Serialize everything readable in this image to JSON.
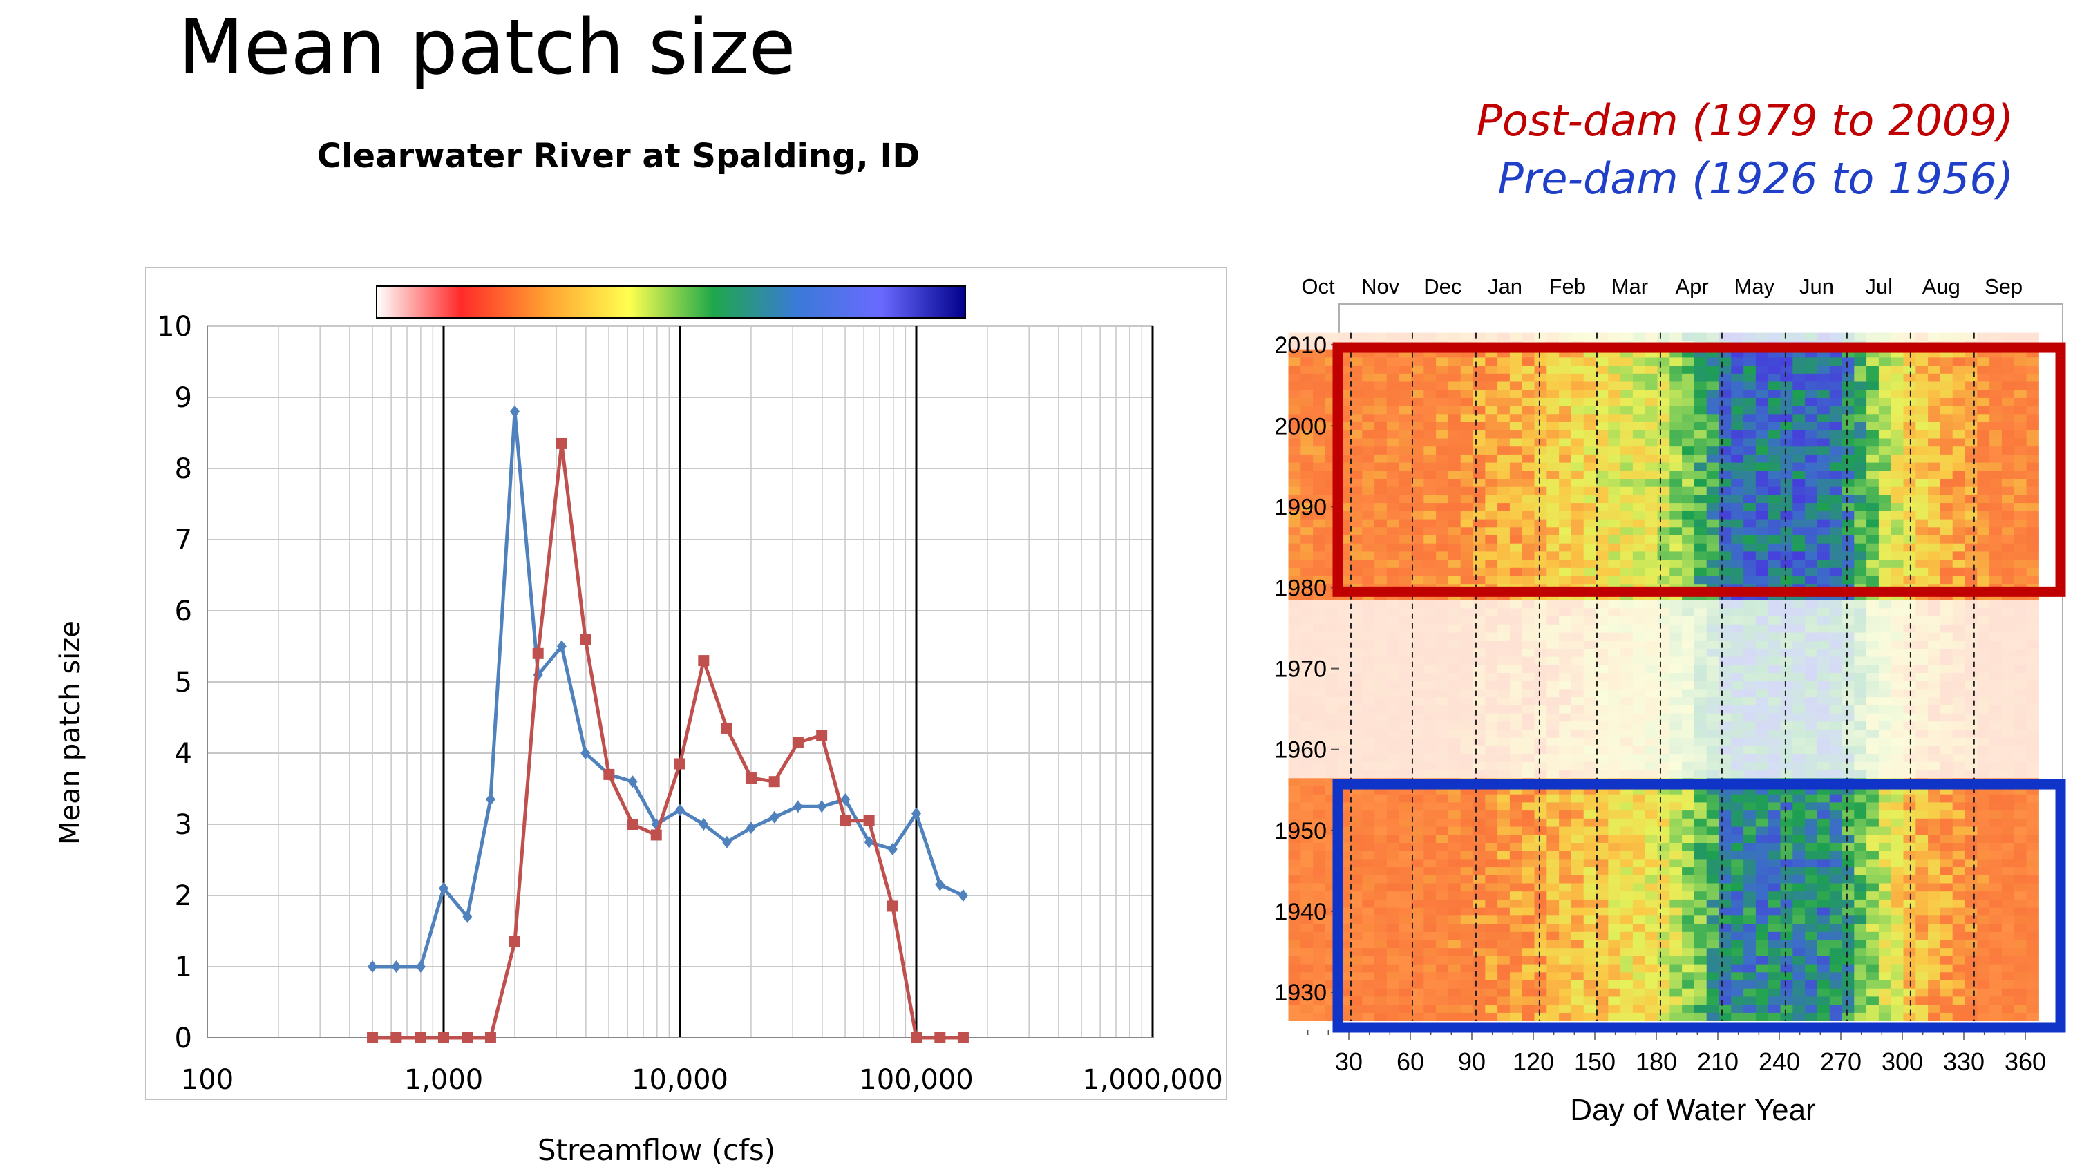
{
  "page": {
    "title": "Mean patch size",
    "legend_post": "Post-dam (1979 to 2009)",
    "legend_pre": "Pre-dam (1926 to 1956)",
    "colors": {
      "post": "#c0504d",
      "pre": "#4f81bd",
      "post_text": "#c00000",
      "pre_text": "#1f3fc8",
      "post_box": "#c00000",
      "pre_box": "#1034c8"
    }
  },
  "chart_data": [
    {
      "type": "line",
      "title": "Clearwater River at Spalding, ID",
      "xlabel": "Streamflow (cfs)",
      "ylabel": "Mean patch size",
      "xscale": "log",
      "xlim": [
        100,
        1000000
      ],
      "ylim": [
        0,
        10
      ],
      "x_tick_labels": [
        "100",
        "1,000",
        "10,000",
        "100,000",
        "1,000,000"
      ],
      "y_tick_labels": [
        "0",
        "1",
        "2",
        "3",
        "4",
        "5",
        "6",
        "7",
        "8",
        "9",
        "10"
      ],
      "grid": true,
      "colorbar": [
        "#ffffff",
        "#ff2a2a",
        "#ffa030",
        "#ffff50",
        "#1fa84a",
        "#3a7ad8",
        "#6a6aff",
        "#00008b"
      ],
      "series": [
        {
          "color": "#4f81bd",
          "marker": "diamond",
          "x": [
            500,
            630,
            800,
            1000,
            1260,
            1580,
            2000,
            2510,
            3160,
            3980,
            5010,
            6310,
            7940,
            10000,
            12600,
            15800,
            20000,
            25100,
            31600,
            39800,
            50100,
            63100,
            79400,
            100000,
            126000,
            158000
          ],
          "y": [
            1.0,
            1.0,
            1.0,
            2.1,
            1.7,
            3.35,
            8.8,
            5.1,
            5.5,
            4.0,
            3.7,
            3.6,
            3.0,
            3.2,
            3.0,
            2.75,
            2.95,
            3.1,
            3.25,
            3.25,
            3.35,
            2.75,
            2.65,
            3.15,
            2.15,
            2.0
          ]
        },
        {
          "color": "#c0504d",
          "marker": "square",
          "x": [
            500,
            630,
            800,
            1000,
            1260,
            1580,
            2000,
            2510,
            3160,
            3980,
            5010,
            6310,
            7940,
            10000,
            12600,
            15800,
            20000,
            25100,
            31600,
            39800,
            50100,
            63100,
            79400,
            100000,
            126000,
            158000
          ],
          "y": [
            0,
            0,
            0,
            0,
            0,
            0,
            1.35,
            5.4,
            8.35,
            5.6,
            3.7,
            3.0,
            2.85,
            3.85,
            5.3,
            4.35,
            3.65,
            3.6,
            4.15,
            4.25,
            3.05,
            3.05,
            1.85,
            0,
            0,
            0
          ]
        }
      ]
    },
    {
      "type": "heatmap",
      "xlabel": "Day of Water Year",
      "x_ticks": [
        30,
        60,
        90,
        120,
        150,
        180,
        210,
        240,
        270,
        300,
        330,
        360
      ],
      "month_labels": [
        "Oct",
        "Nov",
        "Dec",
        "Jan",
        "Feb",
        "Mar",
        "Apr",
        "May",
        "Jun",
        "Jul",
        "Aug",
        "Sep"
      ],
      "y_ticks": [
        1930,
        1940,
        1950,
        1960,
        1970,
        1980,
        1990,
        2000,
        2010
      ],
      "year_range": [
        1927,
        2011
      ],
      "post_dam_years": [
        1979,
        2009
      ],
      "pre_dam_years": [
        1926,
        1956
      ]
    }
  ]
}
